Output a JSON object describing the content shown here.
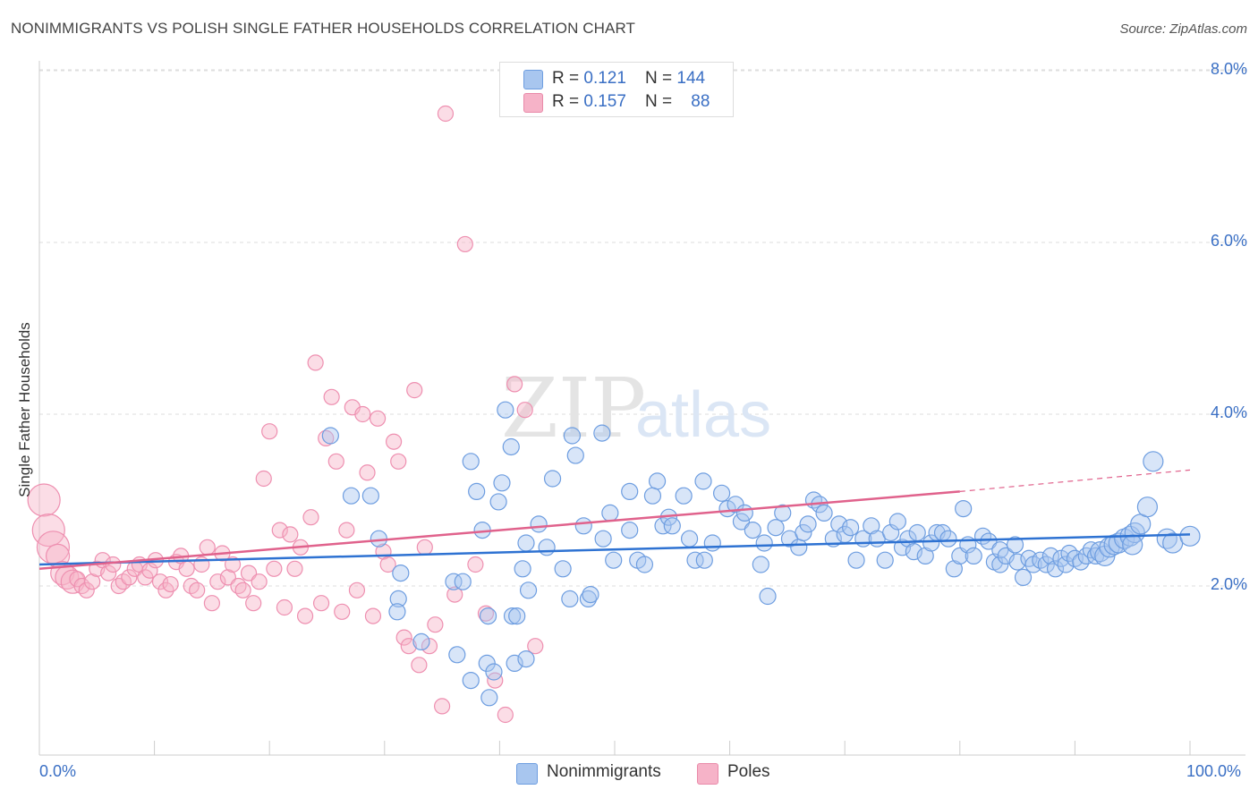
{
  "title": "NONIMMIGRANTS VS POLISH SINGLE FATHER HOUSEHOLDS CORRELATION CHART",
  "source": "Source: ZipAtlas.com",
  "watermark": {
    "zip": "ZIP",
    "atlas": "atlas"
  },
  "legend": {
    "rows": [
      {
        "r_label": "R = ",
        "r_value": "0.121",
        "n_label": "N = ",
        "n_value": "144",
        "color": "#a8c6ef"
      },
      {
        "r_label": "R = ",
        "r_value": "0.157",
        "n_label": "N = ",
        "n_value": "88",
        "color": "#f6b3c8"
      }
    ]
  },
  "colors": {
    "blue_fill": "#a8c6ef",
    "blue_line": "#2e72d2",
    "pink_fill": "#f6b3c8",
    "pink_line": "#e0628c",
    "tick_text": "#3a6fc4",
    "grid": "#dddddd"
  },
  "chart_data": {
    "type": "scatter",
    "title": "NONIMMIGRANTS VS POLISH SINGLE FATHER HOUSEHOLDS CORRELATION CHART",
    "xlabel": "",
    "ylabel": "Single Father Households",
    "xlim": [
      0,
      100
    ],
    "ylim": [
      0,
      8.5
    ],
    "x_tick_labels": [
      "0.0%",
      "100.0%"
    ],
    "y_ticks": [
      2,
      4,
      6,
      8
    ],
    "y_tick_labels": [
      "2.0%",
      "4.0%",
      "6.0%",
      "8.0%"
    ],
    "grid": true,
    "legend_position": "top-center",
    "series": [
      {
        "name": "Nonimmigrants",
        "color": "#a8c6ef",
        "trend": {
          "x0": 0,
          "y0": 2.25,
          "x1": 100,
          "y1": 2.6
        },
        "points": [
          [
            25.3,
            3.75
          ],
          [
            27.1,
            3.05
          ],
          [
            28.8,
            3.05
          ],
          [
            29.5,
            2.55
          ],
          [
            31.4,
            2.15
          ],
          [
            31.2,
            1.85
          ],
          [
            31.1,
            1.7
          ],
          [
            33.2,
            1.35
          ],
          [
            36.0,
            2.05
          ],
          [
            36.3,
            1.2
          ],
          [
            36.8,
            2.05
          ],
          [
            37.5,
            0.9
          ],
          [
            37.5,
            3.45
          ],
          [
            38.0,
            3.1
          ],
          [
            38.9,
            1.1
          ],
          [
            38.5,
            2.65
          ],
          [
            39.0,
            1.65
          ],
          [
            39.5,
            1.0
          ],
          [
            39.1,
            0.7
          ],
          [
            39.9,
            2.98
          ],
          [
            40.2,
            3.2
          ],
          [
            40.5,
            4.05
          ],
          [
            41.3,
            1.1
          ],
          [
            41.1,
            1.65
          ],
          [
            41.5,
            1.65
          ],
          [
            41.0,
            3.62
          ],
          [
            42.0,
            2.2
          ],
          [
            42.3,
            2.5
          ],
          [
            42.3,
            1.15
          ],
          [
            42.5,
            1.95
          ],
          [
            43.4,
            2.72
          ],
          [
            44.1,
            2.45
          ],
          [
            44.6,
            3.25
          ],
          [
            45.5,
            2.2
          ],
          [
            46.3,
            3.75
          ],
          [
            46.1,
            1.85
          ],
          [
            46.6,
            3.52
          ],
          [
            47.3,
            2.7
          ],
          [
            47.7,
            1.85
          ],
          [
            47.9,
            1.9
          ],
          [
            48.9,
            3.78
          ],
          [
            49.0,
            2.55
          ],
          [
            49.6,
            2.85
          ],
          [
            49.9,
            2.3
          ],
          [
            51.3,
            2.65
          ],
          [
            51.3,
            3.1
          ],
          [
            52.0,
            2.3
          ],
          [
            52.6,
            2.25
          ],
          [
            53.7,
            3.22
          ],
          [
            53.3,
            3.05
          ],
          [
            54.2,
            2.7
          ],
          [
            54.7,
            2.8
          ],
          [
            55.0,
            2.7
          ],
          [
            56.0,
            3.05
          ],
          [
            56.5,
            2.55
          ],
          [
            57.0,
            2.3
          ],
          [
            57.7,
            3.22
          ],
          [
            57.8,
            2.3
          ],
          [
            58.5,
            2.5
          ],
          [
            59.3,
            3.08
          ],
          [
            59.8,
            2.9
          ],
          [
            60.5,
            2.95
          ],
          [
            61.0,
            2.75
          ],
          [
            61.3,
            2.85
          ],
          [
            62.0,
            2.65
          ],
          [
            62.7,
            2.25
          ],
          [
            63.0,
            2.5
          ],
          [
            63.3,
            1.88
          ],
          [
            64.0,
            2.68
          ],
          [
            64.6,
            2.85
          ],
          [
            65.2,
            2.55
          ],
          [
            66.0,
            2.45
          ],
          [
            66.4,
            2.62
          ],
          [
            66.8,
            2.72
          ],
          [
            67.3,
            3.0
          ],
          [
            67.8,
            2.95
          ],
          [
            68.2,
            2.85
          ],
          [
            69.0,
            2.55
          ],
          [
            69.5,
            2.72
          ],
          [
            70.0,
            2.6
          ],
          [
            70.5,
            2.68
          ],
          [
            71.0,
            2.3
          ],
          [
            71.6,
            2.55
          ],
          [
            72.3,
            2.7
          ],
          [
            72.8,
            2.55
          ],
          [
            73.5,
            2.3
          ],
          [
            74.0,
            2.62
          ],
          [
            74.6,
            2.75
          ],
          [
            75.0,
            2.45
          ],
          [
            75.5,
            2.55
          ],
          [
            76.0,
            2.4
          ],
          [
            76.3,
            2.62
          ],
          [
            77.0,
            2.35
          ],
          [
            77.5,
            2.5
          ],
          [
            78.0,
            2.62
          ],
          [
            78.5,
            2.62
          ],
          [
            79.0,
            2.55
          ],
          [
            79.5,
            2.2
          ],
          [
            80.0,
            2.35
          ],
          [
            80.3,
            2.9
          ],
          [
            80.7,
            2.48
          ],
          [
            81.2,
            2.35
          ],
          [
            82.0,
            2.58
          ],
          [
            82.5,
            2.52
          ],
          [
            83.0,
            2.28
          ],
          [
            83.5,
            2.25
          ],
          [
            83.5,
            2.42
          ],
          [
            84.0,
            2.35
          ],
          [
            84.8,
            2.48
          ],
          [
            85.0,
            2.28
          ],
          [
            85.5,
            2.1
          ],
          [
            86.0,
            2.32
          ],
          [
            86.4,
            2.25
          ],
          [
            87.0,
            2.3
          ],
          [
            87.5,
            2.25
          ],
          [
            87.9,
            2.35
          ],
          [
            88.3,
            2.2
          ],
          [
            88.8,
            2.32
          ],
          [
            89.2,
            2.25
          ],
          [
            89.5,
            2.38
          ],
          [
            90.0,
            2.32
          ],
          [
            90.5,
            2.28
          ],
          [
            91.0,
            2.35
          ],
          [
            91.4,
            2.42
          ],
          [
            91.8,
            2.35
          ],
          [
            92.2,
            2.4
          ],
          [
            92.6,
            2.35
          ],
          [
            93.0,
            2.45
          ],
          [
            93.4,
            2.48
          ],
          [
            93.8,
            2.5
          ],
          [
            94.3,
            2.55
          ],
          [
            94.8,
            2.58
          ],
          [
            95.2,
            2.62
          ],
          [
            95.7,
            2.72
          ],
          [
            96.3,
            2.92
          ],
          [
            96.8,
            3.45
          ],
          [
            98.0,
            2.55
          ],
          [
            98.5,
            2.5
          ],
          [
            100.0,
            2.58
          ],
          [
            95.0,
            2.48
          ]
        ]
      },
      {
        "name": "Poles",
        "color": "#f6b3c8",
        "trend": {
          "x0": 0,
          "y0": 2.2,
          "x1": 80,
          "y1": 3.1,
          "dashed_to": {
            "x": 100,
            "y": 3.35
          }
        },
        "points": [
          [
            0.4,
            3.0
          ],
          [
            0.8,
            2.65
          ],
          [
            1.2,
            2.45
          ],
          [
            1.6,
            2.35
          ],
          [
            2.0,
            2.15
          ],
          [
            2.4,
            2.1
          ],
          [
            2.9,
            2.05
          ],
          [
            3.3,
            2.08
          ],
          [
            3.7,
            2.0
          ],
          [
            4.1,
            1.95
          ],
          [
            4.6,
            2.05
          ],
          [
            5.0,
            2.2
          ],
          [
            5.5,
            2.3
          ],
          [
            6.0,
            2.15
          ],
          [
            6.4,
            2.25
          ],
          [
            6.9,
            2.0
          ],
          [
            7.3,
            2.05
          ],
          [
            7.8,
            2.1
          ],
          [
            8.3,
            2.2
          ],
          [
            8.7,
            2.25
          ],
          [
            9.2,
            2.1
          ],
          [
            9.6,
            2.18
          ],
          [
            10.1,
            2.3
          ],
          [
            10.5,
            2.05
          ],
          [
            11.0,
            1.95
          ],
          [
            11.4,
            2.02
          ],
          [
            11.9,
            2.28
          ],
          [
            12.3,
            2.35
          ],
          [
            12.8,
            2.2
          ],
          [
            13.2,
            2.0
          ],
          [
            13.7,
            1.95
          ],
          [
            14.1,
            2.25
          ],
          [
            14.6,
            2.45
          ],
          [
            15.0,
            1.8
          ],
          [
            15.5,
            2.05
          ],
          [
            15.9,
            2.38
          ],
          [
            16.4,
            2.1
          ],
          [
            16.8,
            2.25
          ],
          [
            17.3,
            2.0
          ],
          [
            17.7,
            1.95
          ],
          [
            18.2,
            2.15
          ],
          [
            18.6,
            1.8
          ],
          [
            19.1,
            2.05
          ],
          [
            19.5,
            3.25
          ],
          [
            20.0,
            3.8
          ],
          [
            20.4,
            2.2
          ],
          [
            20.9,
            2.65
          ],
          [
            21.3,
            1.75
          ],
          [
            21.8,
            2.6
          ],
          [
            22.2,
            2.2
          ],
          [
            22.7,
            2.45
          ],
          [
            23.1,
            1.65
          ],
          [
            23.6,
            2.8
          ],
          [
            24.0,
            4.6
          ],
          [
            24.5,
            1.8
          ],
          [
            24.9,
            3.72
          ],
          [
            25.4,
            4.2
          ],
          [
            25.8,
            3.45
          ],
          [
            26.3,
            1.7
          ],
          [
            26.7,
            2.65
          ],
          [
            27.2,
            4.08
          ],
          [
            27.6,
            1.95
          ],
          [
            28.1,
            4.0
          ],
          [
            28.5,
            3.32
          ],
          [
            29.0,
            1.65
          ],
          [
            29.4,
            3.95
          ],
          [
            29.9,
            2.4
          ],
          [
            30.3,
            2.25
          ],
          [
            30.8,
            3.68
          ],
          [
            31.2,
            3.45
          ],
          [
            31.7,
            1.4
          ],
          [
            32.1,
            1.3
          ],
          [
            32.6,
            4.28
          ],
          [
            33.0,
            1.08
          ],
          [
            33.5,
            2.45
          ],
          [
            33.9,
            1.3
          ],
          [
            34.4,
            1.55
          ],
          [
            35.0,
            0.6
          ],
          [
            35.3,
            7.5
          ],
          [
            36.1,
            1.9
          ],
          [
            37.0,
            5.98
          ],
          [
            37.9,
            2.25
          ],
          [
            38.8,
            1.68
          ],
          [
            39.6,
            0.9
          ],
          [
            40.5,
            0.5
          ],
          [
            41.3,
            4.35
          ],
          [
            42.2,
            4.05
          ],
          [
            43.1,
            1.3
          ]
        ]
      }
    ]
  },
  "axes": {
    "ylabel": "Single Father Households",
    "x_left": "0.0%",
    "x_right": "100.0%"
  },
  "bottom_legend": [
    {
      "label": "Nonimmigrants",
      "color": "#a8c6ef"
    },
    {
      "label": "Poles",
      "color": "#f6b3c8"
    }
  ]
}
